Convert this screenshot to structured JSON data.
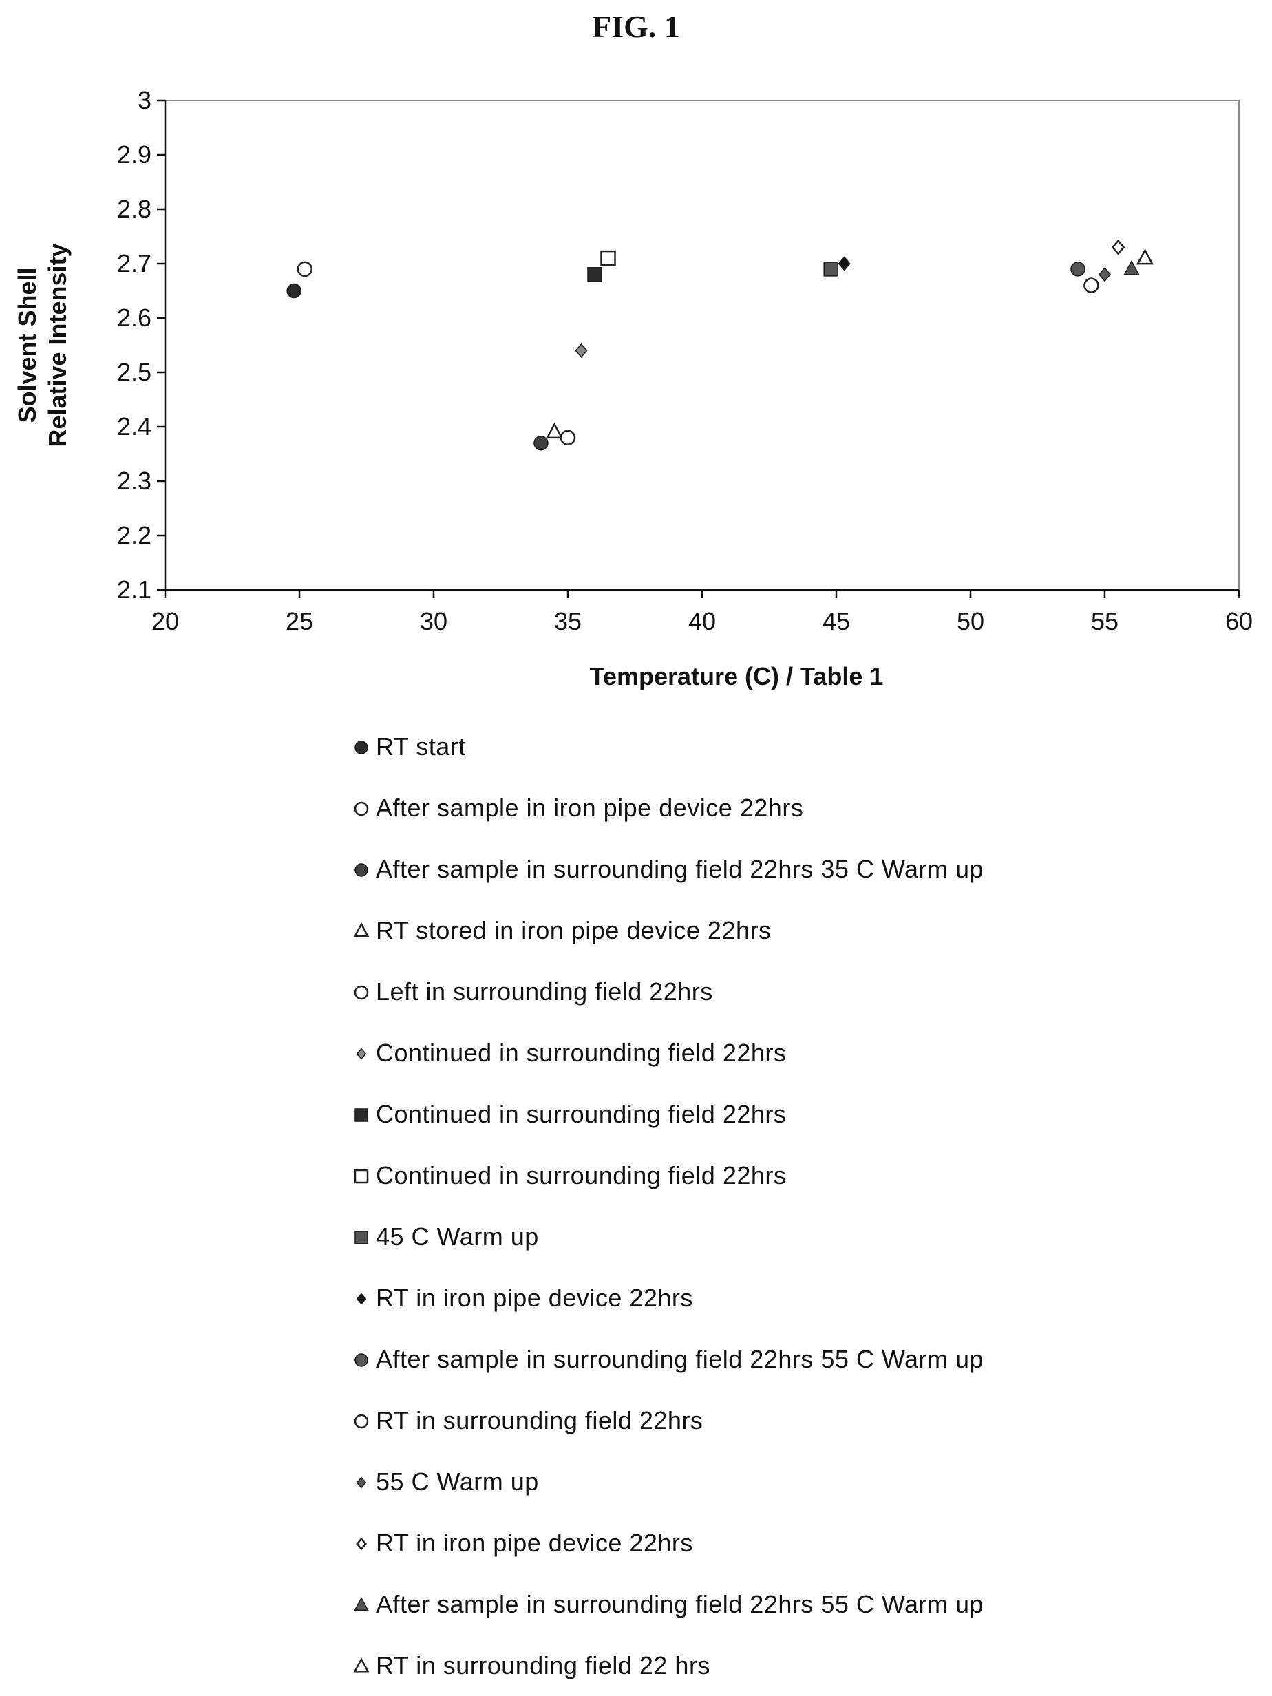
{
  "chart_data": {
    "type": "scatter",
    "title": "FIG. 1",
    "xlabel": "Temperature (C) / Table 1",
    "ylabel": [
      "Solvent  Shell",
      "Relative  Intensity"
    ],
    "xlim": [
      20,
      60
    ],
    "ylim": [
      2.1,
      3
    ],
    "x_ticks": [
      "20",
      "25",
      "30",
      "35",
      "40",
      "45",
      "50",
      "55",
      "60"
    ],
    "y_ticks": [
      "2.1",
      "2.2",
      "2.3",
      "2.4",
      "2.5",
      "2.6",
      "2.7",
      "2.8",
      "2.9",
      "3"
    ],
    "grid": false,
    "legend_position": "bottom",
    "series": [
      {
        "name": "RT start",
        "marker": "circle",
        "fill": "#2b2b2b",
        "x": 24.8,
        "y": 2.65
      },
      {
        "name": "After sample in iron pipe device 22hrs",
        "marker": "circle-open",
        "fill": "#ffffff",
        "x": 25.2,
        "y": 2.69
      },
      {
        "name": "After sample in surrounding field 22hrs 35 C Warm up",
        "marker": "circle",
        "fill": "#404040",
        "x": 34.0,
        "y": 2.37
      },
      {
        "name": "RT stored in iron pipe device 22hrs",
        "marker": "triangle-open",
        "fill": "#ffffff",
        "x": 34.5,
        "y": 2.39
      },
      {
        "name": "Left in surrounding field 22hrs",
        "marker": "circle-open",
        "fill": "#ffffff",
        "x": 35.0,
        "y": 2.38
      },
      {
        "name": "Continued in surrounding field 22hrs",
        "marker": "diamond",
        "fill": "#8a8a8a",
        "x": 35.5,
        "y": 2.54
      },
      {
        "name": "Continued in surrounding field 22hrs",
        "marker": "square",
        "fill": "#2b2b2b",
        "x": 36.0,
        "y": 2.68
      },
      {
        "name": "Continued in surrounding field 22hrs",
        "marker": "square-open",
        "fill": "#ffffff",
        "x": 36.5,
        "y": 2.71
      },
      {
        "name": "45 C Warm up",
        "marker": "square",
        "fill": "#555555",
        "x": 44.8,
        "y": 2.69
      },
      {
        "name": "RT in iron pipe device 22hrs",
        "marker": "diamond",
        "fill": "#111111",
        "x": 45.3,
        "y": 2.7
      },
      {
        "name": "After sample in surrounding field 22hrs 55 C Warm up",
        "marker": "circle",
        "fill": "#555555",
        "x": 54.0,
        "y": 2.69
      },
      {
        "name": "RT in surrounding field 22hrs",
        "marker": "circle-open",
        "fill": "#ffffff",
        "x": 54.5,
        "y": 2.66
      },
      {
        "name": "55 C Warm up",
        "marker": "diamond",
        "fill": "#5a5a5a",
        "x": 55.0,
        "y": 2.68
      },
      {
        "name": "RT in iron pipe device 22hrs",
        "marker": "diamond-open",
        "fill": "#ffffff",
        "x": 55.5,
        "y": 2.73
      },
      {
        "name": "After sample in surrounding field 22hrs 55 C Warm up",
        "marker": "triangle",
        "fill": "#555555",
        "x": 56.0,
        "y": 2.69
      },
      {
        "name": "RT in surrounding field 22 hrs",
        "marker": "triangle-open",
        "fill": "#ffffff",
        "x": 56.5,
        "y": 2.71
      }
    ]
  }
}
